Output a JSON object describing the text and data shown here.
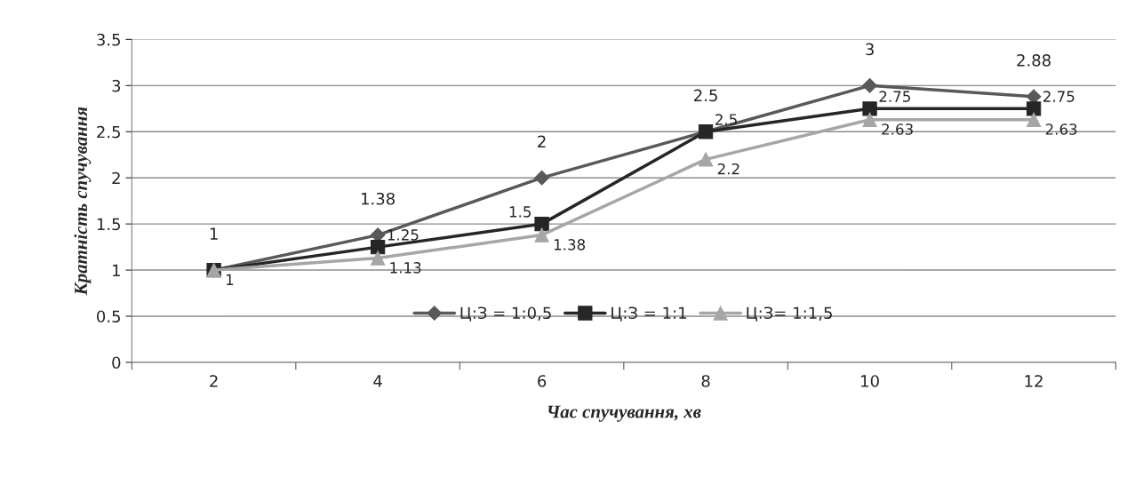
{
  "chart_data": {
    "type": "line",
    "xlabel": "Час спучування, хв",
    "ylabel": "Кратність спучування",
    "categories": [
      "2",
      "4",
      "6",
      "8",
      "10",
      "12"
    ],
    "series": [
      {
        "name": "Ц:З = 1:0,5",
        "color": "#595959",
        "marker": "diamond",
        "values": [
          1,
          1.38,
          2,
          2.5,
          3,
          2.88
        ],
        "value_labels": [
          "1",
          "1.38",
          "2",
          "2.5",
          "3",
          "2.88"
        ]
      },
      {
        "name": "Ц:З = 1:1",
        "color": "#262626",
        "marker": "square",
        "values": [
          1,
          1.25,
          1.5,
          2.5,
          2.75,
          2.75
        ],
        "value_labels": [
          null,
          "1.25",
          "1.5",
          "2.5",
          "2.75",
          "2.75"
        ]
      },
      {
        "name": "Ц:З= 1:1,5",
        "color": "#a6a6a6",
        "marker": "triangle",
        "values": [
          1,
          1.13,
          1.38,
          2.2,
          2.63,
          2.63
        ],
        "value_labels": [
          "1",
          "1.13",
          "1.38",
          "2.2",
          "2.63",
          "2.63"
        ]
      }
    ],
    "ylim": [
      0,
      3.5
    ],
    "yticks": [
      0,
      0.5,
      1,
      1.5,
      2,
      2.5,
      3,
      3.5
    ],
    "grid": "y",
    "legend": "bottom"
  }
}
